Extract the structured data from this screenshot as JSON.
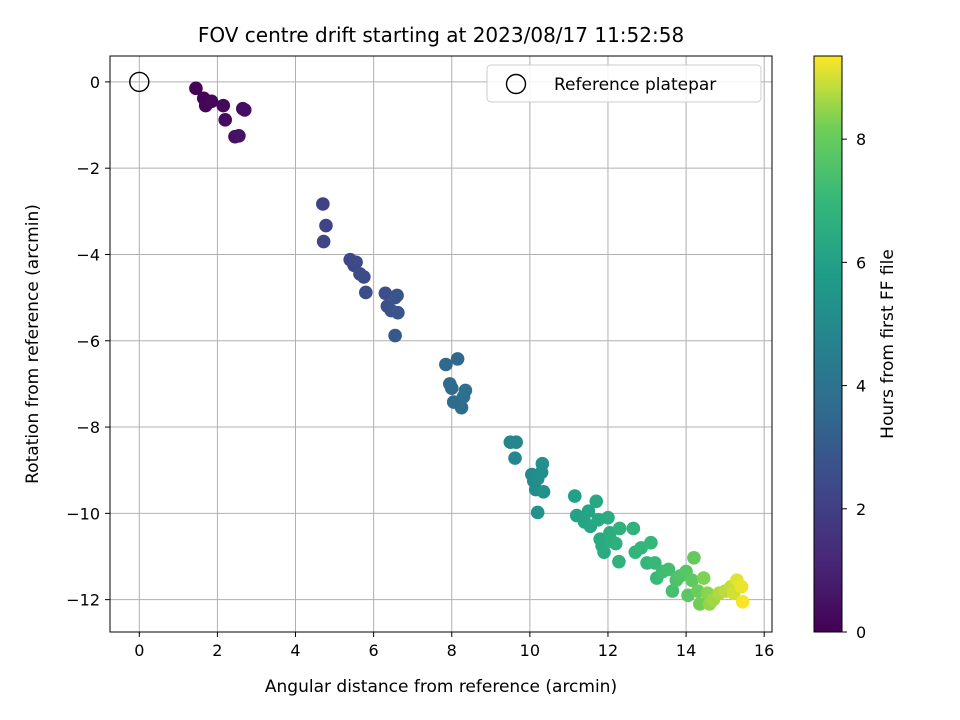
{
  "chart_data": {
    "type": "scatter",
    "title": "FOV centre drift starting at 2023/08/17 11:52:58",
    "xlabel": "Angular distance from reference (arcmin)",
    "ylabel": "Rotation from reference (arcmin)",
    "xlim": [
      -0.75,
      16.2
    ],
    "ylim": [
      -12.75,
      0.6
    ],
    "xticks": [
      0,
      2,
      4,
      6,
      8,
      10,
      12,
      14,
      16
    ],
    "yticks": [
      0,
      -2,
      -4,
      -6,
      -8,
      -10,
      -12
    ],
    "grid": true,
    "legend": {
      "placement": "top-right",
      "entries": [
        "Reference platepar"
      ]
    },
    "reference_point": {
      "x": 0,
      "y": 0,
      "label": "Reference platepar"
    },
    "colorbar": {
      "label": "Hours from first FF file",
      "colormap": "viridis",
      "range": [
        0,
        9.35
      ],
      "ticks": [
        0,
        2,
        4,
        6,
        8
      ]
    },
    "points": [
      [
        1.45,
        -0.15,
        0.05
      ],
      [
        1.65,
        -0.38,
        0.1
      ],
      [
        1.7,
        -0.55,
        0.15
      ],
      [
        1.85,
        -0.45,
        0.2
      ],
      [
        2.15,
        -0.55,
        0.25
      ],
      [
        2.2,
        -0.88,
        0.3
      ],
      [
        2.65,
        -0.62,
        0.35
      ],
      [
        2.7,
        -0.65,
        0.4
      ],
      [
        2.45,
        -1.27,
        0.45
      ],
      [
        2.55,
        -1.25,
        0.5
      ],
      [
        4.7,
        -2.83,
        2.1
      ],
      [
        4.78,
        -3.33,
        2.15
      ],
      [
        4.72,
        -3.7,
        2.2
      ],
      [
        5.4,
        -4.12,
        2.25
      ],
      [
        5.5,
        -4.25,
        2.3
      ],
      [
        5.55,
        -4.18,
        2.35
      ],
      [
        5.65,
        -4.45,
        2.4
      ],
      [
        5.75,
        -4.52,
        2.45
      ],
      [
        5.8,
        -4.88,
        2.5
      ],
      [
        6.3,
        -4.9,
        2.55
      ],
      [
        6.35,
        -5.2,
        2.6
      ],
      [
        6.45,
        -5.3,
        2.65
      ],
      [
        6.55,
        -5.0,
        2.7
      ],
      [
        6.6,
        -4.95,
        2.75
      ],
      [
        6.62,
        -5.35,
        2.8
      ],
      [
        6.55,
        -5.88,
        2.85
      ],
      [
        7.85,
        -6.55,
        3.5
      ],
      [
        8.15,
        -6.42,
        3.55
      ],
      [
        7.95,
        -7.0,
        3.6
      ],
      [
        8.0,
        -7.1,
        3.65
      ],
      [
        8.05,
        -7.42,
        3.7
      ],
      [
        8.25,
        -7.55,
        3.75
      ],
      [
        8.3,
        -7.3,
        3.8
      ],
      [
        8.35,
        -7.15,
        3.85
      ],
      [
        9.5,
        -8.35,
        4.8
      ],
      [
        9.65,
        -8.35,
        4.85
      ],
      [
        9.62,
        -8.72,
        4.9
      ],
      [
        10.05,
        -9.1,
        5.0
      ],
      [
        10.1,
        -9.25,
        5.05
      ],
      [
        10.15,
        -9.45,
        5.1
      ],
      [
        10.2,
        -9.2,
        5.15
      ],
      [
        10.3,
        -9.05,
        5.2
      ],
      [
        10.32,
        -8.85,
        5.25
      ],
      [
        10.35,
        -9.5,
        5.3
      ],
      [
        10.2,
        -9.98,
        5.35
      ],
      [
        11.15,
        -9.6,
        6.0
      ],
      [
        11.2,
        -10.05,
        6.05
      ],
      [
        11.4,
        -10.2,
        6.1
      ],
      [
        11.5,
        -9.95,
        6.15
      ],
      [
        11.55,
        -10.3,
        6.2
      ],
      [
        11.7,
        -9.72,
        6.25
      ],
      [
        11.75,
        -10.15,
        6.3
      ],
      [
        11.8,
        -10.6,
        6.35
      ],
      [
        11.85,
        -10.75,
        6.4
      ],
      [
        11.9,
        -10.9,
        6.45
      ],
      [
        12.0,
        -10.1,
        6.5
      ],
      [
        12.05,
        -10.45,
        6.55
      ],
      [
        12.1,
        -10.65,
        6.6
      ],
      [
        12.2,
        -10.7,
        6.65
      ],
      [
        12.3,
        -10.35,
        6.7
      ],
      [
        12.28,
        -11.12,
        6.75
      ],
      [
        12.65,
        -10.35,
        6.8
      ],
      [
        12.7,
        -10.9,
        6.85
      ],
      [
        12.85,
        -10.8,
        6.9
      ],
      [
        13.0,
        -11.15,
        6.95
      ],
      [
        13.1,
        -10.68,
        7.0
      ],
      [
        13.2,
        -11.15,
        7.05
      ],
      [
        13.25,
        -11.5,
        7.1
      ],
      [
        13.4,
        -11.35,
        7.2
      ],
      [
        13.55,
        -11.3,
        7.3
      ],
      [
        13.65,
        -11.8,
        7.4
      ],
      [
        13.75,
        -11.55,
        7.5
      ],
      [
        13.85,
        -11.45,
        7.6
      ],
      [
        14.0,
        -11.35,
        7.7
      ],
      [
        14.05,
        -11.9,
        7.8
      ],
      [
        14.15,
        -11.55,
        7.9
      ],
      [
        14.2,
        -11.03,
        8.0
      ],
      [
        14.3,
        -11.8,
        8.1
      ],
      [
        14.35,
        -12.1,
        8.2
      ],
      [
        14.45,
        -11.5,
        8.3
      ],
      [
        14.55,
        -11.85,
        8.4
      ],
      [
        14.6,
        -12.1,
        8.5
      ],
      [
        14.7,
        -12.0,
        8.6
      ],
      [
        14.85,
        -11.85,
        8.7
      ],
      [
        15.0,
        -11.8,
        8.8
      ],
      [
        15.15,
        -11.7,
        8.9
      ],
      [
        15.22,
        -11.85,
        9.0
      ],
      [
        15.3,
        -11.55,
        9.1
      ],
      [
        15.42,
        -11.7,
        9.2
      ],
      [
        15.45,
        -12.05,
        9.3
      ]
    ]
  }
}
